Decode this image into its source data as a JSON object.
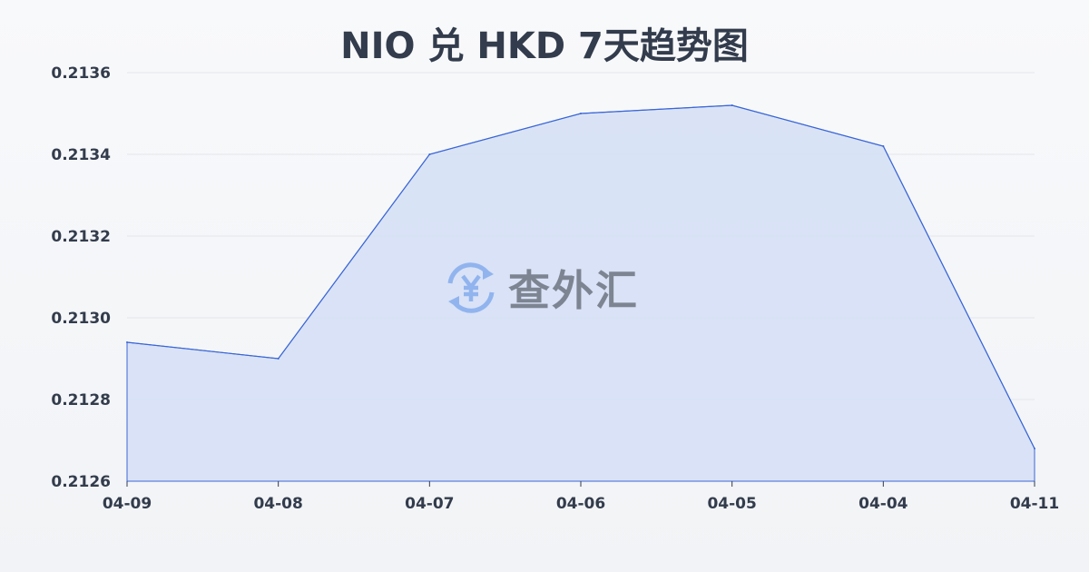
{
  "chart_data": {
    "type": "area",
    "title": "NIO 兑 HKD 7天趋势图",
    "categories": [
      "04-09",
      "04-08",
      "04-07",
      "04-06",
      "04-05",
      "04-04",
      "04-11"
    ],
    "values": [
      0.21294,
      0.2129,
      0.2134,
      0.2135,
      0.21352,
      0.21342,
      0.21268
    ],
    "yticks": [
      "0.2126",
      "0.2128",
      "0.2130",
      "0.2132",
      "0.2134",
      "0.2136"
    ],
    "ylim": [
      0.2126,
      0.2136
    ],
    "grid": true,
    "line_color": "#3a66d6",
    "fill_color": "#d6e0f5"
  },
  "watermark": {
    "text": "查外汇",
    "icon": "yen-exchange-icon"
  }
}
